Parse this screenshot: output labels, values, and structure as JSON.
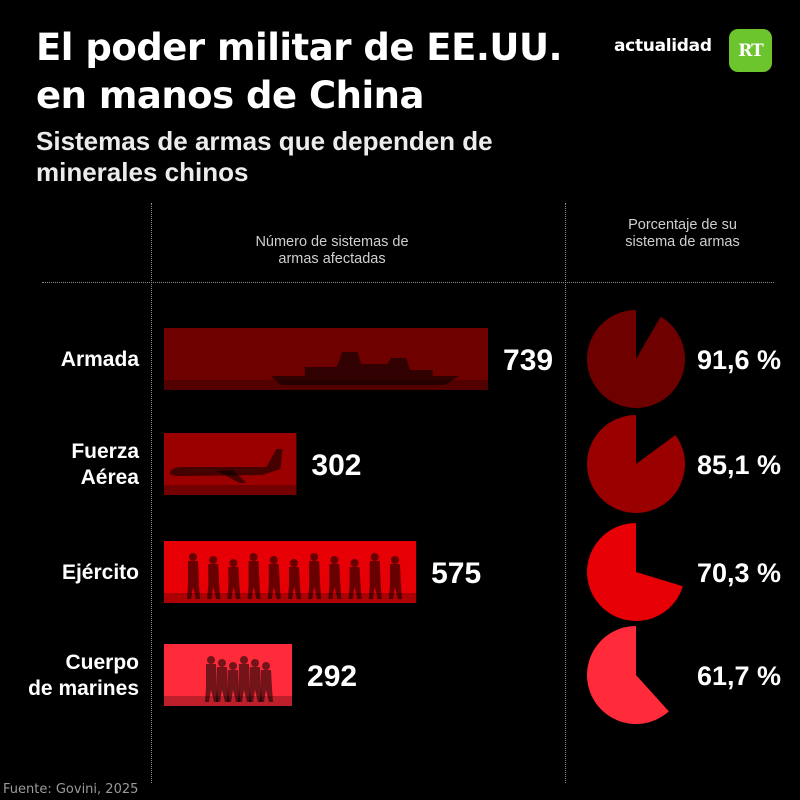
{
  "header": {
    "title": "El poder militar de EE.UU. en manos de China",
    "subtitle": "Sistemas de armas que dependen de minerales chinos",
    "brand": "actualidad",
    "logo_text": "RT",
    "logo_color": "#6cc52d"
  },
  "columns": {
    "count_header": "Número de sistemas de armas afectadas",
    "percent_header": "Porcentaje de su sistema de armas"
  },
  "source": "Fuente: Govini, 2025",
  "chart_data": {
    "type": "bar",
    "title": "El poder militar de EE.UU. en manos de China",
    "subtitle": "Sistemas de armas que dependen de minerales chinos",
    "categories": [
      "Armada",
      "Fuerza Aérea",
      "Ejército",
      "Cuerpo de marines"
    ],
    "series": [
      {
        "name": "Número de sistemas de armas afectadas",
        "values": [
          739,
          302,
          575,
          292
        ],
        "labels": [
          "739",
          "302",
          "575",
          "292"
        ]
      },
      {
        "name": "Porcentaje de su sistema de armas",
        "values": [
          91.6,
          85.1,
          70.3,
          61.7
        ],
        "labels": [
          "91,6 %",
          "85,1 %",
          "70,3 %",
          "61,7 %"
        ]
      }
    ],
    "colors": [
      "#6e0000",
      "#9a0000",
      "#e60006",
      "#ff2a3a"
    ],
    "silhouettes": [
      "ship-icon",
      "plane-icon",
      "soldiers-icon",
      "marines-icon"
    ],
    "grid": false,
    "legend": "none"
  }
}
